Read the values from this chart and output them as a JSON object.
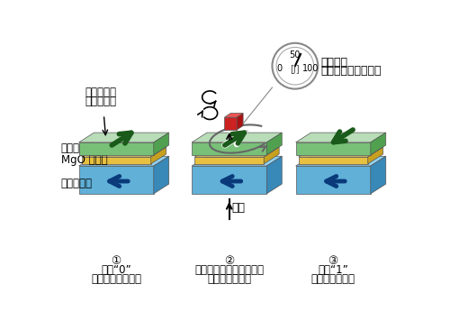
{
  "bg_color": "#ffffff",
  "green_top_col": "#b8ddb8",
  "green_front_col": "#78c078",
  "green_side_col": "#50a050",
  "yellow_top_col": "#f5d870",
  "yellow_front_col": "#e8c040",
  "yellow_side_col": "#c8a020",
  "blue_top_col": "#90d0f0",
  "blue_front_col": "#60b0d8",
  "blue_side_col": "#3888b8",
  "red_top_col": "#ee5555",
  "red_front_col": "#cc2222",
  "red_side_col": "#aa1111",
  "arrow_green": "#1a5a1a",
  "arrow_blue": "#0a3a7a",
  "label1": "磁化フリー層",
  "label2": "MgO 絶縁層",
  "label3": "磁化固定層",
  "label_direction_1": "磁化の方向",
  "label_direction_2": "を表す矢印",
  "label_torquemeter_1": "回転力計",
  "label_torquemeter_2": "（トルクメーター）",
  "label_current": "電流",
  "caption1_num": "①",
  "caption1_line1": "状態“0”",
  "caption1_line2": "磁化が反平行状態",
  "caption2_num": "②",
  "caption2_line1": "電流が作るトルクにより",
  "caption2_line2": "磁化が回転する",
  "caption3_num": "③",
  "caption3_line1": "状態“1”",
  "caption3_line2": "磁化が平行状態",
  "gauge_50": "50",
  "gauge_0": "0",
  "gauge_100": "100",
  "gauge_unit": "[J]"
}
